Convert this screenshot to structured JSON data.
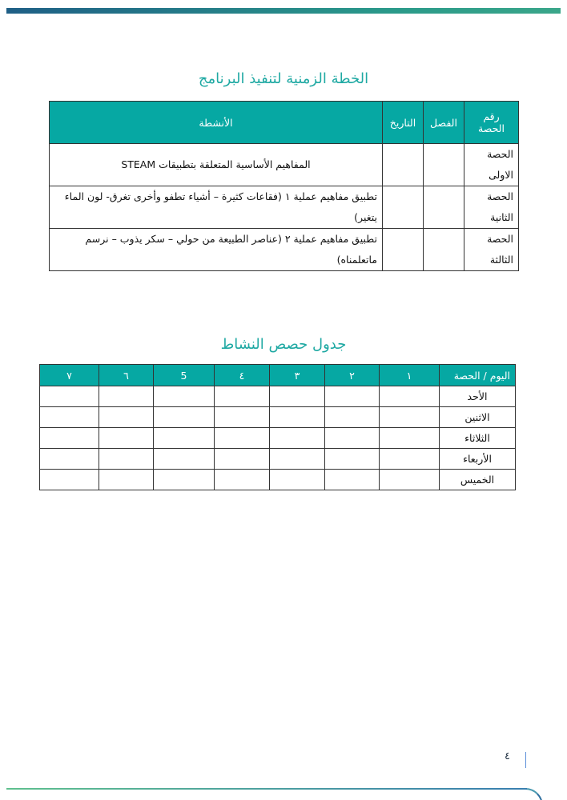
{
  "plan": {
    "title": "الخطة الزمنية لتنفيذ البرنامج",
    "headers": [
      "رقم الحصة",
      "الفصل",
      "التاريخ",
      "الأنشطة"
    ],
    "rows": [
      {
        "session": "الحصة الاولى",
        "class": "",
        "date": "",
        "activity": "المفاهيم الأساسية المتعلقة بتطبيقات STEAM"
      },
      {
        "session": "الحصة الثانية",
        "class": "",
        "date": "",
        "activity": "تطبيق مفاهيم عملية ١ (فقاعات كثيرة – أشياء تطفو وأخرى تغرق- لون الماء يتغير)"
      },
      {
        "session": "الحصة الثالثة",
        "class": "",
        "date": "",
        "activity": "تطبيق مفاهيم عملية ٢ (عناصر الطبيعة من حولي – سكر يذوب – نرسم ماتعلمناه)"
      }
    ]
  },
  "schedule": {
    "title": "جدول حصص النشاط",
    "headers": [
      "اليوم / الحصة",
      "١",
      "٢",
      "٣",
      "٤",
      "5",
      "٦",
      "٧"
    ],
    "days": [
      "الأحد",
      "الاثنين",
      "الثلاثاء",
      "الأربعاء",
      "الخميس"
    ]
  },
  "footer": {
    "page_number": "٤"
  },
  "colors": {
    "accent": "#06a8a3",
    "title": "#1fa9a3"
  }
}
